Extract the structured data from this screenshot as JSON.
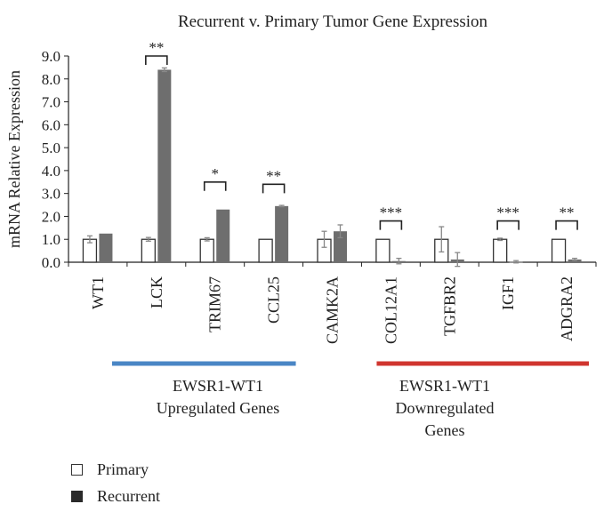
{
  "chart_data": {
    "type": "bar",
    "title": "Recurrent v. Primary Tumor Gene Expression",
    "ylabel": "mRNA Relative Expression",
    "xlabel": "",
    "ylim": [
      0,
      9
    ],
    "yticks": [
      "0.0",
      "1.0",
      "2.0",
      "3.0",
      "4.0",
      "5.0",
      "6.0",
      "7.0",
      "8.0",
      "9.0"
    ],
    "categories": [
      "WT1",
      "LCK",
      "TRIM67",
      "CCL25",
      "CAMK2A",
      "COL12A1",
      "TGFBR2",
      "IGF1",
      "ADGRA2"
    ],
    "series": [
      {
        "name": "Primary",
        "color": "#ffffff",
        "values": [
          1.0,
          1.0,
          1.0,
          1.0,
          1.0,
          1.0,
          1.0,
          1.0,
          1.0
        ],
        "errors": [
          0.15,
          0.08,
          0.07,
          0.0,
          0.35,
          0.0,
          0.55,
          0.05,
          0.0
        ]
      },
      {
        "name": "Recurrent",
        "color": "#6e6e6e",
        "values": [
          1.25,
          8.4,
          2.3,
          2.45,
          1.35,
          0.05,
          0.12,
          0.02,
          0.12
        ],
        "errors": [
          0.0,
          0.08,
          0.0,
          0.03,
          0.28,
          0.12,
          0.3,
          0.05,
          0.05
        ]
      }
    ],
    "significance": [
      {
        "category_index": 1,
        "label": "**",
        "y": 9.0
      },
      {
        "category_index": 2,
        "label": "*",
        "y": 3.5
      },
      {
        "category_index": 3,
        "label": "**",
        "y": 3.4
      },
      {
        "category_index": 5,
        "label": "***",
        "y": 1.8
      },
      {
        "category_index": 7,
        "label": "***",
        "y": 1.8
      },
      {
        "category_index": 8,
        "label": "**",
        "y": 1.8
      }
    ],
    "groups": [
      {
        "label_line1": "EWSR1-WT1",
        "label_line2": "Upregulated Genes",
        "label_line3": "",
        "color": "#4a86c5",
        "from_index": 0,
        "to_index": 3
      },
      {
        "label_line1": "EWSR1-WT1",
        "label_line2": "Downregulated",
        "label_line3": "Genes",
        "color": "#d0352f",
        "from_index": 5,
        "to_index": 8
      }
    ],
    "legend": [
      "Primary",
      "Recurrent"
    ]
  }
}
